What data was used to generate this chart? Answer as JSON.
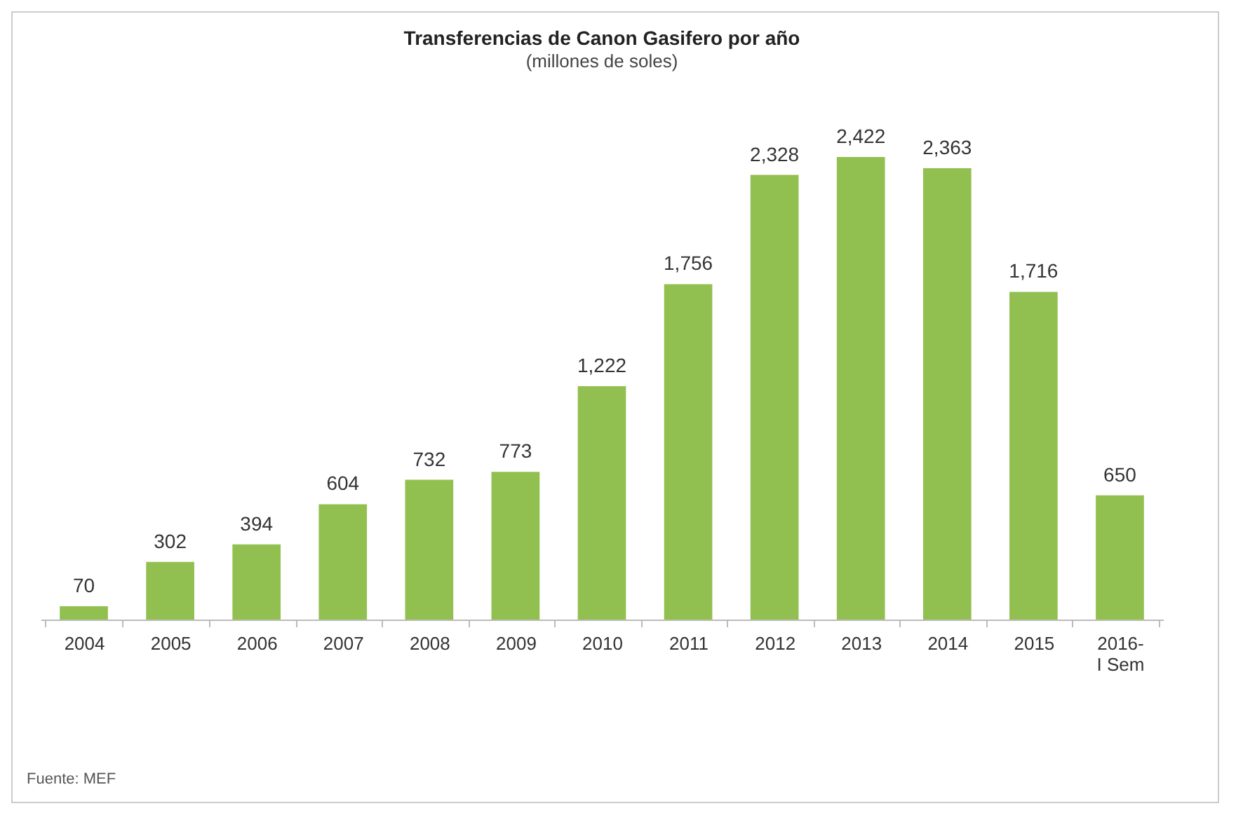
{
  "chart_data": {
    "type": "bar",
    "title": "Transferencias de Canon Gasifero por año",
    "subtitle": "(millones de soles)",
    "categories": [
      "2004",
      "2005",
      "2006",
      "2007",
      "2008",
      "2009",
      "2010",
      "2011",
      "2012",
      "2013",
      "2014",
      "2015",
      "2016- I Sem"
    ],
    "values": [
      70,
      302,
      394,
      604,
      732,
      773,
      1222,
      1756,
      2328,
      2422,
      2363,
      1716,
      650
    ],
    "color": "#92c050",
    "value_labels": [
      "70",
      "302",
      "394",
      "604",
      "732",
      "773",
      "1,222",
      "1,756",
      "2,328",
      "2,422",
      "2,363",
      "1,716",
      "650"
    ],
    "annotations": [
      "Fuente: MEF"
    ]
  }
}
